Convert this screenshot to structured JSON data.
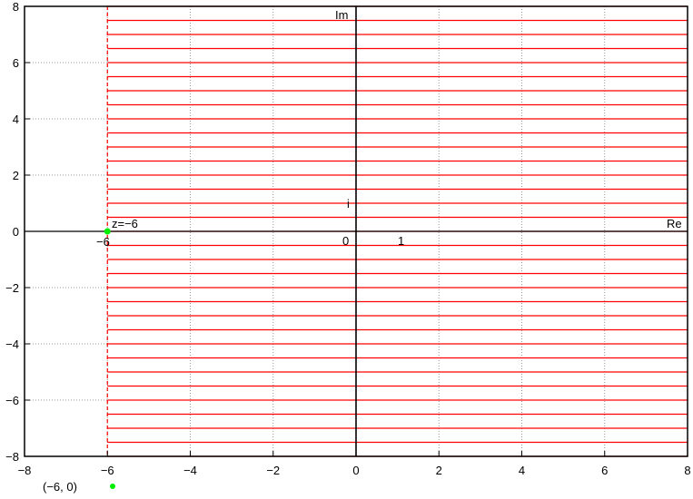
{
  "chart_data": {
    "type": "line",
    "xlim": [
      -8,
      8
    ],
    "ylim": [
      -8,
      8
    ],
    "x_ticks": [
      -8,
      -6,
      -4,
      -2,
      0,
      2,
      4,
      6,
      8
    ],
    "y_ticks": [
      -8,
      -6,
      -4,
      -2,
      0,
      2,
      4,
      6,
      8
    ],
    "x_tick_labels": [
      "−8",
      "−6",
      "−4",
      "−2",
      "0",
      "2",
      "4",
      "6",
      "8"
    ],
    "y_tick_labels": [
      "−8",
      "−6",
      "−4",
      "−2",
      "0",
      "2",
      "4",
      "6",
      "8"
    ],
    "grid": true,
    "horizontal_lines": {
      "color": "#ff0000",
      "x_from": -6,
      "x_to": 8,
      "y_from": -8,
      "y_to": 8,
      "step": 0.5
    },
    "vertical_dashed_line": {
      "x": -6,
      "color": "#ff0000"
    },
    "point": {
      "x": -6,
      "y": 0,
      "color": "#00ee00"
    },
    "legend": {
      "label": "(−6, 0)",
      "placement": "bottom-left",
      "color": "#00ee00"
    },
    "annotations": {
      "im": "Im",
      "re": "Re",
      "i": "i",
      "origin": "0",
      "one": "1",
      "z_label": "z=−6",
      "minus_six": "−6"
    }
  }
}
